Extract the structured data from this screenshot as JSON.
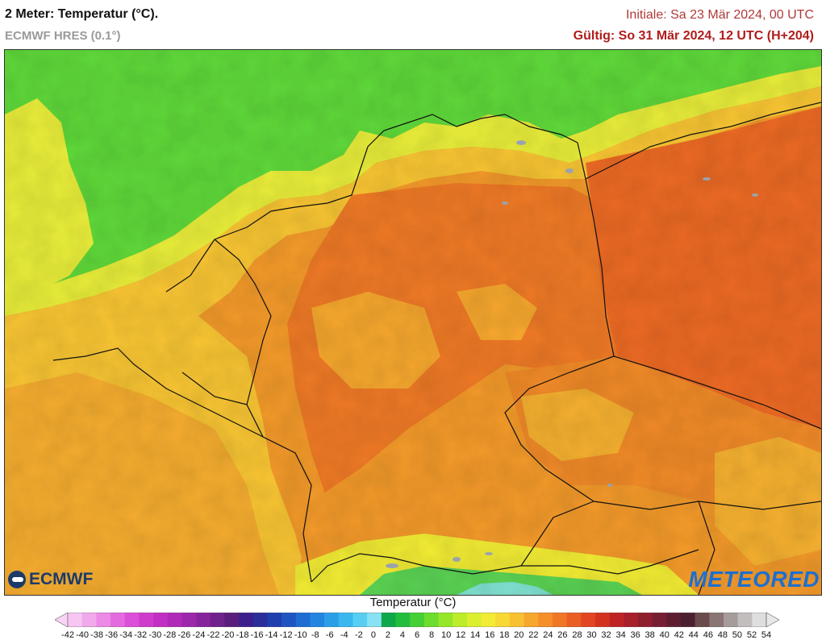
{
  "header": {
    "title": "2 Meter: Temperatur (°C).",
    "model": "ECMWF HRES (0.1°)",
    "initial": "Initiale: Sa 23 Mär 2024, 00 UTC",
    "valid": "Gültig: So 31 Mär 2024, 12 UTC (H+204)"
  },
  "logos": {
    "left": "ECMWF",
    "right": "METEORED"
  },
  "legend": {
    "title": "Temperatur (°C)",
    "labels": [
      "-42",
      "-40",
      "-38",
      "-36",
      "-34",
      "-32",
      "-30",
      "-28",
      "-26",
      "-24",
      "-22",
      "-20",
      "-18",
      "-16",
      "-14",
      "-12",
      "-10",
      "-8",
      "-6",
      "-4",
      "-2",
      "0",
      "2",
      "4",
      "6",
      "8",
      "10",
      "12",
      "14",
      "16",
      "18",
      "20",
      "22",
      "24",
      "26",
      "28",
      "30",
      "32",
      "34",
      "36",
      "38",
      "40",
      "42",
      "44",
      "46",
      "48",
      "50",
      "52",
      "54"
    ],
    "colors": [
      "#f7c6f2",
      "#f2a9ec",
      "#ec8ae6",
      "#e46adf",
      "#dc4fd8",
      "#cf3ccd",
      "#c22fc4",
      "#b02ab8",
      "#9c27aa",
      "#86249c",
      "#6f218c",
      "#5a1e7c",
      "#3c1f8a",
      "#2a2d9a",
      "#1f3fae",
      "#1f55c2",
      "#1f6cd4",
      "#2385e0",
      "#2a9fe8",
      "#3ab8ee",
      "#58cff2",
      "#88e2f4",
      "#0ea84a",
      "#23bd3e",
      "#45cf36",
      "#6ddc2e",
      "#96e62a",
      "#bdec2a",
      "#dcef2e",
      "#f2ec34",
      "#f8d934",
      "#f8c132",
      "#f6a72e",
      "#f58f2a",
      "#f07726",
      "#ea5e22",
      "#e24620",
      "#d33220",
      "#bf2424",
      "#a8202a",
      "#8f1e2e",
      "#761e32",
      "#5e1e32",
      "#4a2030",
      "#6a4a4a",
      "#8a7474",
      "#a69c9c",
      "#c2bebe",
      "#dedede"
    ],
    "below_min_color": "#f9d4f6",
    "above_max_color": "#e8e8e8"
  },
  "map": {
    "region": "Germany and surroundings",
    "colors": {
      "sea_green": "#5fd93a",
      "coast_yellow": "#e9ee3a",
      "warm_yellow": "#f8c533",
      "orange": "#f39a2a",
      "deep_orange": "#ef7a26",
      "red_orange": "#ec6a24",
      "alps_green": "#5bd454",
      "alps_cyan": "#7fe1d0",
      "lakes": "#9aa3ad",
      "borders": "#111111"
    }
  }
}
